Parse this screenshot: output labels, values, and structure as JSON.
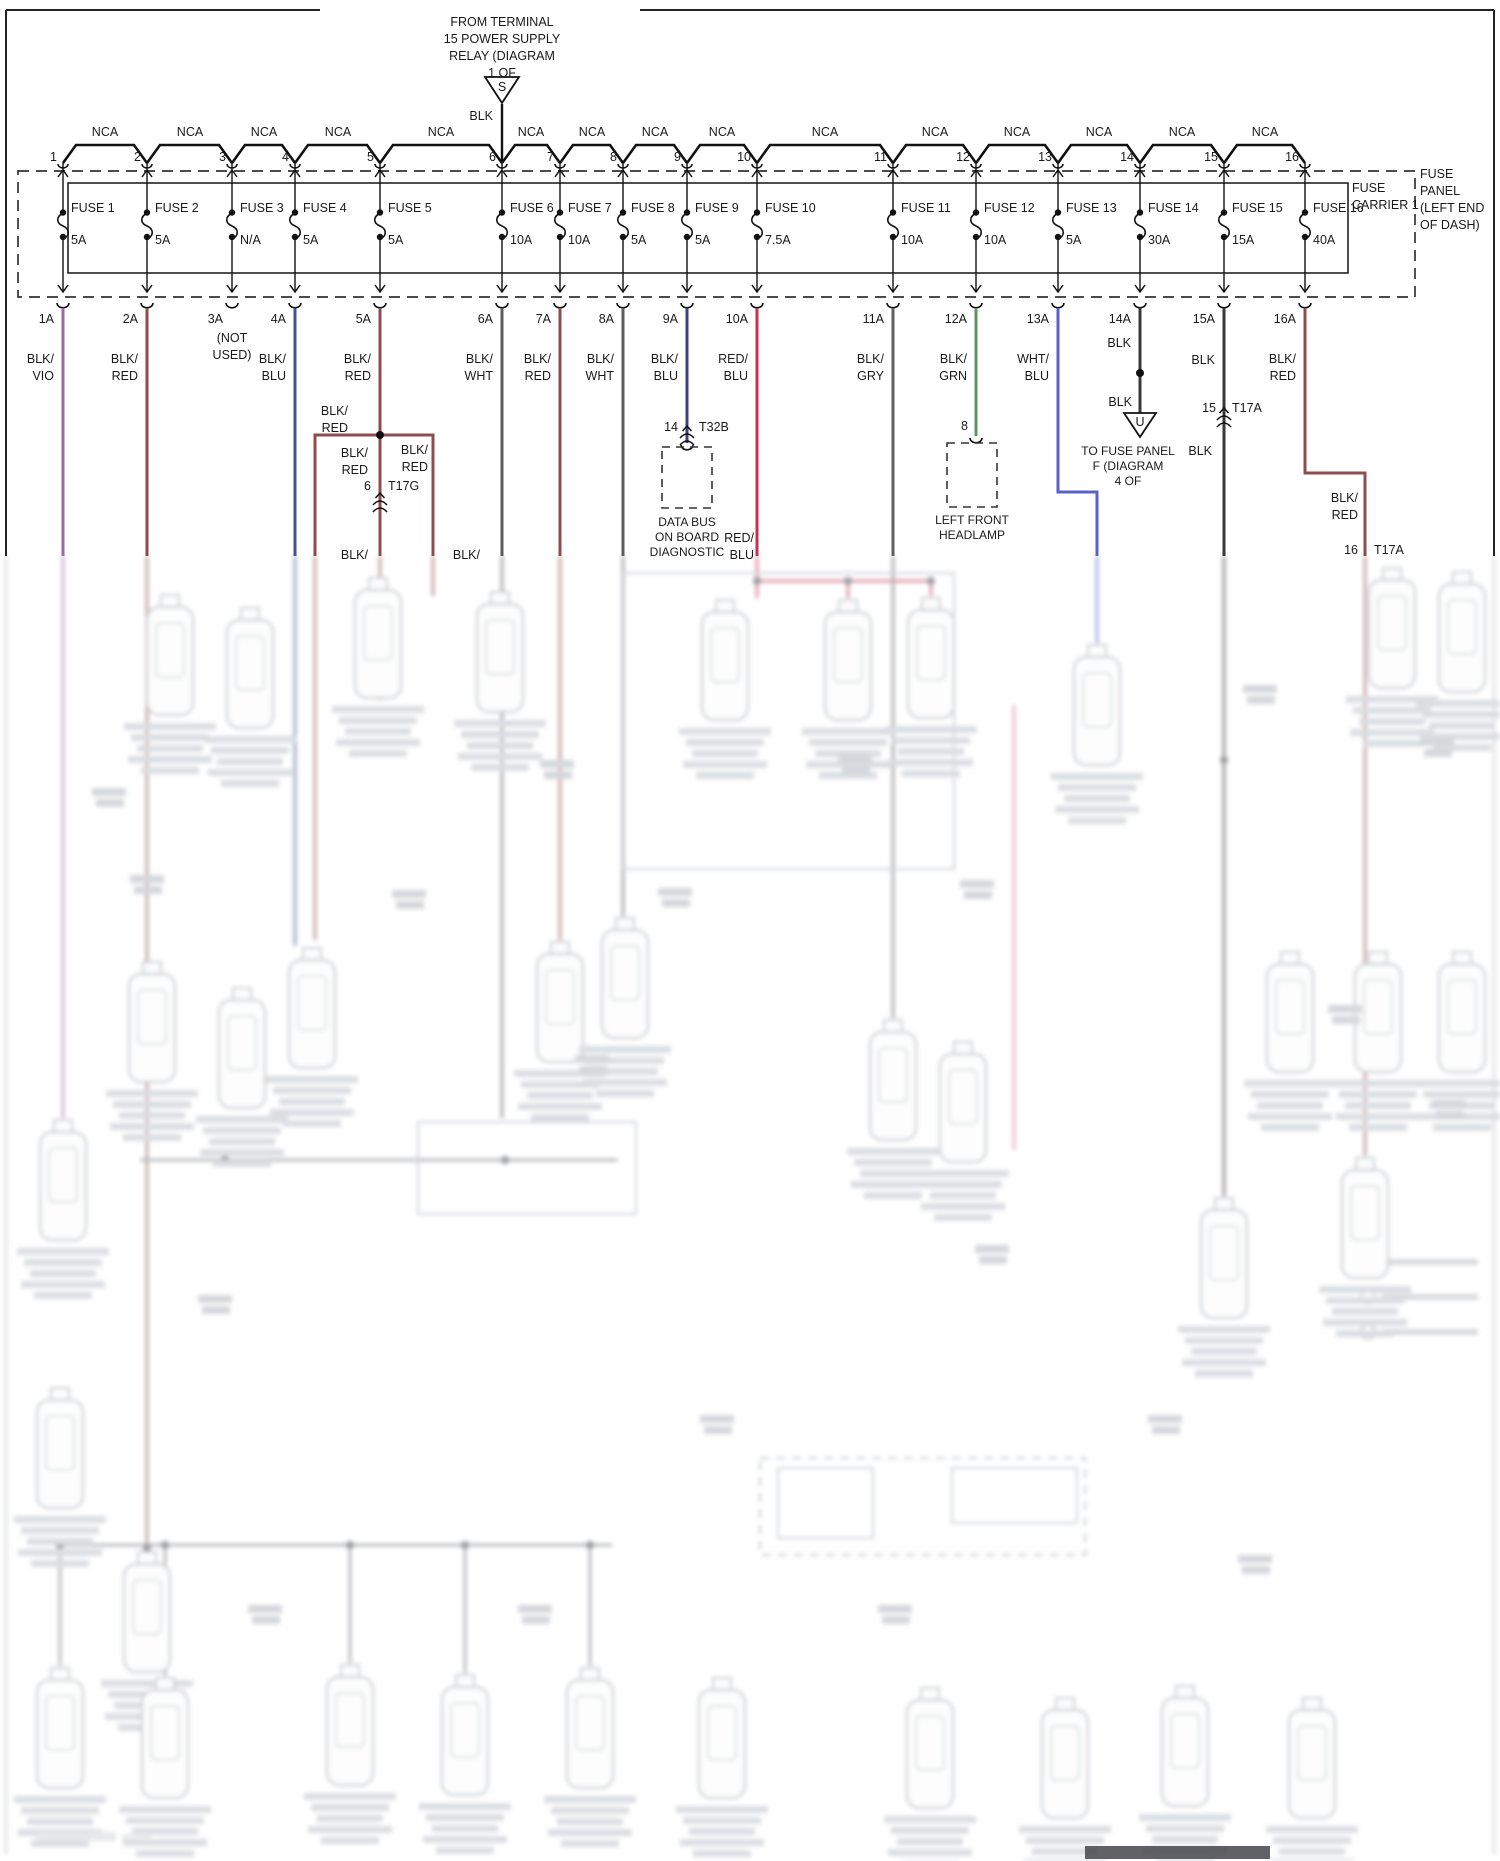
{
  "header": {
    "source": "FROM TERMINAL\n15 POWER SUPPLY\nRELAY (DIAGRAM\n1 OF",
    "source_symbol": "S",
    "feed_wire_label": "BLK"
  },
  "bus": {
    "segment_label": "NCA"
  },
  "panel": {
    "carrier": "FUSE\nCARRIER 1",
    "location": "FUSE\nPANEL\n(LEFT END\nOF DASH)"
  },
  "circuits": [
    {
      "node": "1",
      "fuse": "FUSE 1",
      "amp": "5A",
      "id": "1A",
      "color": "BLK/\nVIO",
      "hex": "#9b6b9e"
    },
    {
      "node": "2",
      "fuse": "FUSE 2",
      "amp": "5A",
      "id": "2A",
      "color": "BLK/\nRED",
      "hex": "#8d4d4d"
    },
    {
      "node": "3",
      "fuse": "FUSE 3",
      "amp": "N/A",
      "id": "3A",
      "color": "(NOT\nUSED)",
      "hex": null
    },
    {
      "node": "4",
      "fuse": "FUSE 4",
      "amp": "5A",
      "id": "4A",
      "color": "BLK/\nBLU",
      "hex": "#47538f"
    },
    {
      "node": "5",
      "fuse": "FUSE 5",
      "amp": "5A",
      "id": "5A",
      "color": "BLK/\nRED",
      "hex": "#8d4d4d"
    },
    {
      "node": "6",
      "fuse": "FUSE 6",
      "amp": "10A",
      "id": "6A",
      "color": "BLK/\nWHT",
      "hex": "#5c5c5c"
    },
    {
      "node": "7",
      "fuse": "FUSE 7",
      "amp": "10A",
      "id": "7A",
      "color": "BLK/\nRED",
      "hex": "#8d4d4d"
    },
    {
      "node": "8",
      "fuse": "FUSE 8",
      "amp": "5A",
      "id": "8A",
      "color": "BLK/\nWHT",
      "hex": "#5c5c5c"
    },
    {
      "node": "9",
      "fuse": "FUSE 9",
      "amp": "5A",
      "id": "9A",
      "color": "BLK/\nBLU",
      "hex": "#414178"
    },
    {
      "node": "10",
      "fuse": "FUSE 10",
      "amp": "7.5A",
      "id": "10A",
      "color": "RED/\nBLU",
      "hex": "#c53050"
    },
    {
      "node": "11",
      "fuse": "FUSE 11",
      "amp": "10A",
      "id": "11A",
      "color": "BLK/\nGRY",
      "hex": "#606060"
    },
    {
      "node": "12",
      "fuse": "FUSE 12",
      "amp": "10A",
      "id": "12A",
      "color": "BLK/\nGRN",
      "hex": "#639163"
    },
    {
      "node": "13",
      "fuse": "FUSE 13",
      "amp": "5A",
      "id": "13A",
      "color": "WHT/\nBLU",
      "hex": "#5a62c8"
    },
    {
      "node": "14",
      "fuse": "FUSE 14",
      "amp": "30A",
      "id": "14A",
      "color": "BLK",
      "hex": "#383838"
    },
    {
      "node": "15",
      "fuse": "FUSE 15",
      "amp": "15A",
      "id": "15A",
      "color": "BLK",
      "hex": "#383838"
    },
    {
      "node": "16",
      "fuse": "FUSE 16",
      "amp": "40A",
      "id": "16A",
      "color": "BLK/\nRED",
      "hex": "#8d4d4d"
    }
  ],
  "annotations": {
    "col5_mid": "BLK/\nRED",
    "col5_left": "BLK/\nRED",
    "col5_right": "BLK/\nRED",
    "t17g_pin": "6",
    "t17g": "T17G",
    "t32b_pin": "14",
    "t32b": "T32B",
    "databus": "DATA BUS\nON BOARD\nDIAGNOSTIC",
    "col10_low": "RED/\nBLU",
    "headlamp_pin": "8",
    "headlamp": "LEFT FRONT\nHEADLAMP",
    "blk_mid": "BLK",
    "u_symbol": "U",
    "dest": "TO FUSE PANEL\nF (DIAGRAM\n4 OF",
    "t17a15_pin": "15",
    "t17a15": "T17A",
    "blk_low": "BLK",
    "col16_extra": "BLK/\nRED",
    "t17a16_pin": "16",
    "t17a16": "T17A",
    "stub": "BLK/"
  }
}
